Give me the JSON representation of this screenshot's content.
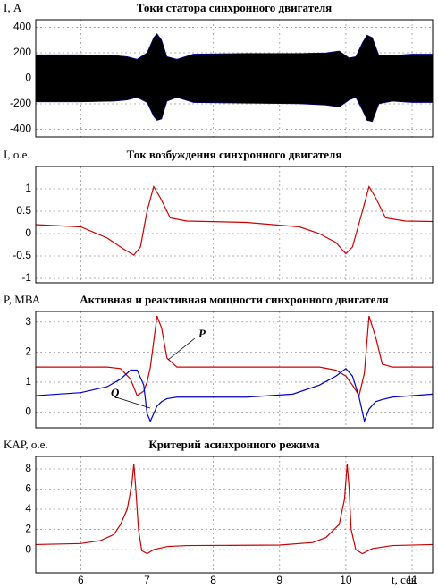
{
  "chart_data": [
    {
      "type": "band",
      "title": "Токи статора синхронного двигателя",
      "y_label": "I, А",
      "xlim": [
        5.32,
        11.31
      ],
      "ylim": [
        -460,
        460
      ],
      "yticks": [
        400,
        200,
        0,
        -200,
        -400
      ],
      "grid": true,
      "x": [
        5.32,
        6.0,
        6.5,
        6.7,
        6.85,
        7.0,
        7.1,
        7.15,
        7.22,
        7.3,
        7.45,
        7.7,
        8.5,
        9.3,
        9.7,
        9.9,
        10.05,
        10.15,
        10.25,
        10.32,
        10.4,
        10.5,
        10.7,
        11.0,
        11.31
      ],
      "series": [
        {
          "color": "#000000",
          "values": [
            185,
            185,
            180,
            170,
            150,
            200,
            320,
            350,
            300,
            170,
            150,
            190,
            195,
            195,
            200,
            215,
            160,
            170,
            280,
            340,
            320,
            180,
            180,
            190,
            190
          ]
        },
        {
          "color": "#000000",
          "values": [
            -185,
            -185,
            -180,
            -170,
            -150,
            -190,
            -300,
            -330,
            -320,
            -180,
            -150,
            -190,
            -195,
            -200,
            -210,
            -225,
            -170,
            -150,
            -250,
            -330,
            -340,
            -200,
            -180,
            -190,
            -190
          ]
        }
      ]
    },
    {
      "type": "line",
      "title": "Ток возбуждения синхронного двигателя",
      "y_label": "I, о.е.",
      "xlim": [
        5.32,
        11.31
      ],
      "ylim": [
        -1.1,
        1.5
      ],
      "yticks": [
        1,
        0.5,
        0,
        -0.5,
        -1
      ],
      "grid": true,
      "x": [
        5.32,
        6.0,
        6.4,
        6.65,
        6.8,
        6.9,
        7.0,
        7.1,
        7.2,
        7.35,
        7.6,
        8.5,
        9.3,
        9.6,
        9.85,
        10.0,
        10.1,
        10.25,
        10.35,
        10.45,
        10.6,
        10.9,
        11.31
      ],
      "series": [
        {
          "color": "#cc0000",
          "values": [
            0.2,
            0.15,
            -0.1,
            -0.35,
            -0.48,
            -0.3,
            0.5,
            1.05,
            0.8,
            0.35,
            0.28,
            0.25,
            0.15,
            0,
            -0.2,
            -0.45,
            -0.3,
            0.5,
            1.05,
            0.8,
            0.35,
            0.28,
            0.27
          ]
        }
      ]
    },
    {
      "type": "line",
      "title": "Активная и реактивная мощности синхронного двигателя",
      "y_label": "P, МВА",
      "xlim": [
        5.32,
        11.31
      ],
      "ylim": [
        -0.52,
        3.35
      ],
      "yticks": [
        3,
        2,
        1,
        0
      ],
      "grid": true,
      "x": [
        5.32,
        6.0,
        6.4,
        6.6,
        6.75,
        6.85,
        6.95,
        7.0,
        7.05,
        7.15,
        7.22,
        7.3,
        7.45,
        8.5,
        9.2,
        9.6,
        9.85,
        10.0,
        10.1,
        10.2,
        10.28,
        10.35,
        10.45,
        10.55,
        10.7,
        11.31
      ],
      "series": [
        {
          "name": "P",
          "color": "#cc0000",
          "values": [
            1.5,
            1.5,
            1.5,
            1.45,
            1.1,
            0.55,
            0.7,
            1.0,
            1.5,
            3.2,
            2.8,
            1.8,
            1.5,
            1.5,
            1.5,
            1.5,
            1.4,
            1.2,
            0.9,
            0.55,
            1.3,
            3.2,
            2.5,
            1.6,
            1.5,
            1.5
          ]
        },
        {
          "name": "Q",
          "color": "#0000cc",
          "values": [
            0.55,
            0.65,
            0.85,
            1.1,
            1.4,
            1.4,
            0.9,
            -0.05,
            -0.3,
            0.2,
            0.35,
            0.45,
            0.5,
            0.5,
            0.6,
            0.9,
            1.2,
            1.45,
            1.2,
            0.5,
            -0.3,
            0.1,
            0.35,
            0.42,
            0.5,
            0.6
          ]
        }
      ]
    },
    {
      "type": "line",
      "title": "Критерий асинхронного режима",
      "y_label": "KАР, о.е.",
      "x_label": "t, сек",
      "xlim": [
        5.32,
        11.31
      ],
      "ylim": [
        -2.3,
        9.24
      ],
      "yticks": [
        8,
        6,
        4,
        2,
        0
      ],
      "xticks": [
        6,
        7,
        8,
        9,
        10,
        11
      ],
      "grid": true,
      "x": [
        5.32,
        6.0,
        6.3,
        6.5,
        6.6,
        6.7,
        6.77,
        6.8,
        6.83,
        6.87,
        6.92,
        7.0,
        7.1,
        7.3,
        7.6,
        9.0,
        9.5,
        9.7,
        9.9,
        9.98,
        10.02,
        10.05,
        10.08,
        10.15,
        10.25,
        10.4,
        10.7,
        11.31
      ],
      "series": [
        {
          "color": "#cc0000",
          "values": [
            0.5,
            0.6,
            0.9,
            1.5,
            2.5,
            4,
            6.5,
            8.5,
            6,
            2,
            -0.1,
            -0.4,
            0,
            0.3,
            0.4,
            0.45,
            0.7,
            1.2,
            2.5,
            5,
            8.5,
            6,
            2,
            0,
            -0.4,
            0.1,
            0.4,
            0.5
          ]
        }
      ]
    }
  ]
}
